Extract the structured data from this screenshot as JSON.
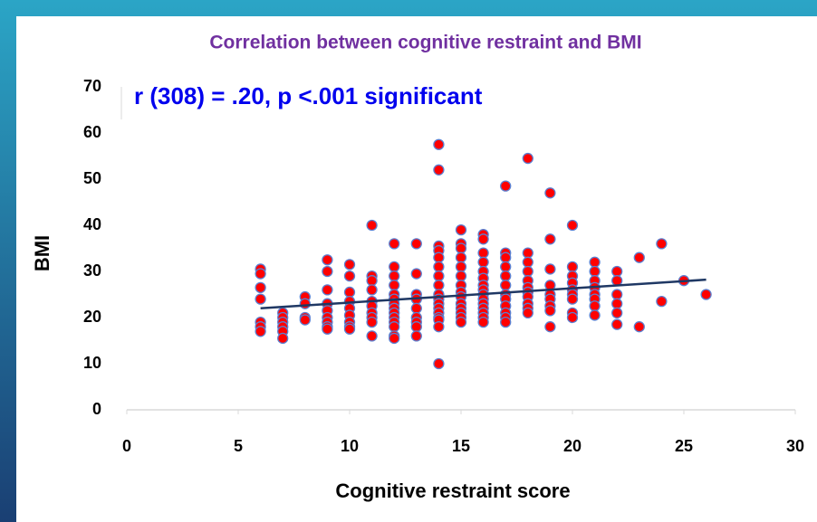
{
  "chart_data": {
    "type": "scatter",
    "title": "Correlation between cognitive restraint and BMI",
    "annotation": "r (308) = .20, p <.001 significant",
    "xlabel": "Cognitive restraint score",
    "ylabel": "BMI",
    "xlim": [
      0,
      30
    ],
    "xticks": [
      0,
      5,
      10,
      15,
      20,
      25,
      30
    ],
    "ylim": [
      0,
      70
    ],
    "yticks": [
      0,
      10,
      20,
      30,
      40,
      50,
      60,
      70
    ],
    "color": "#ff0000",
    "edgecolor": "#5b7fd0",
    "trendline": {
      "color": "#1f3864",
      "x": [
        6,
        26
      ],
      "y": [
        22,
        28.2
      ]
    },
    "x": [
      6,
      6,
      6,
      6,
      6,
      6,
      6,
      7,
      7,
      7,
      7,
      7,
      7,
      8,
      8,
      8,
      8,
      9,
      9,
      9,
      9,
      9,
      9,
      9,
      9,
      9,
      10,
      10,
      10,
      10,
      10,
      10,
      10,
      10,
      10,
      11,
      11,
      11,
      11,
      11,
      11,
      11,
      11,
      11,
      11,
      12,
      12,
      12,
      12,
      12,
      12,
      12,
      12,
      12,
      12,
      12,
      12,
      12,
      12,
      13,
      13,
      13,
      13,
      13,
      13,
      13,
      13,
      13,
      14,
      14,
      14,
      14,
      14,
      14,
      14,
      14,
      14,
      14,
      14,
      14,
      14,
      14,
      14,
      14,
      14,
      15,
      15,
      15,
      15,
      15,
      15,
      15,
      15,
      15,
      15,
      15,
      15,
      15,
      15,
      16,
      16,
      16,
      16,
      16,
      16,
      16,
      16,
      16,
      16,
      16,
      16,
      16,
      16,
      16,
      17,
      17,
      17,
      17,
      17,
      17,
      17,
      17,
      17,
      17,
      17,
      17,
      18,
      18,
      18,
      18,
      18,
      18,
      18,
      18,
      18,
      18,
      18,
      19,
      19,
      19,
      19,
      19,
      19,
      19,
      19,
      19,
      20,
      20,
      20,
      20,
      20,
      20,
      20,
      20,
      20,
      21,
      21,
      21,
      21,
      21,
      21,
      21,
      21,
      22,
      22,
      22,
      22,
      22,
      22,
      23,
      23,
      24,
      24,
      25,
      26
    ],
    "y": [
      30.5,
      29.5,
      26.5,
      24,
      19,
      18,
      17,
      21,
      20,
      19,
      18,
      17,
      15.5,
      24.5,
      23,
      20,
      19.5,
      32.5,
      30,
      26,
      23,
      21.5,
      20,
      19,
      18,
      17.5,
      31.5,
      29,
      25.5,
      23.5,
      22,
      20.5,
      19,
      18,
      17.5,
      40,
      29,
      28,
      26,
      23.5,
      22.5,
      21,
      20,
      19,
      16,
      36,
      31,
      29,
      27,
      25,
      24,
      23,
      22,
      21,
      20,
      19,
      18,
      16,
      15.5,
      36,
      29.5,
      25,
      24,
      22,
      20,
      19,
      18,
      16,
      57.5,
      52,
      35.5,
      34.5,
      33,
      31,
      29,
      27,
      25,
      24,
      23,
      22,
      21,
      20,
      19.5,
      18,
      10,
      39,
      36,
      35,
      33,
      31,
      29,
      27,
      25.5,
      24.5,
      23,
      22,
      21,
      20,
      19,
      38,
      37,
      34,
      32,
      30,
      28.5,
      27,
      26,
      25,
      24,
      23,
      22,
      21,
      20,
      19,
      48.5,
      34,
      33,
      31,
      29,
      27,
      25,
      24,
      22.5,
      21,
      20,
      19,
      54.5,
      34,
      32,
      30,
      28,
      26.5,
      25.5,
      24.5,
      23,
      22,
      21,
      47,
      37,
      30.5,
      27,
      25,
      24,
      22.5,
      21.5,
      18,
      40,
      31,
      29,
      27.5,
      26,
      25,
      24,
      21,
      20,
      32,
      30,
      28,
      26.5,
      25,
      24,
      22.5,
      20.5,
      30,
      28,
      25,
      23,
      21,
      18.5,
      33,
      18,
      36,
      23.5,
      28,
      25
    ]
  }
}
